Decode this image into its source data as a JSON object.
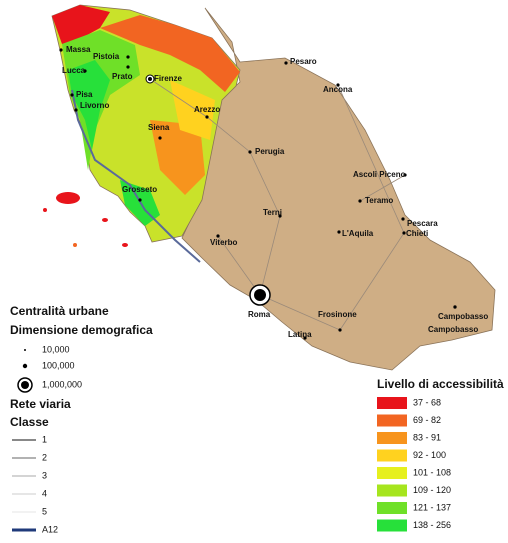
{
  "map": {
    "cities": [
      "Massa",
      "Pistoia",
      "Lucca",
      "Prato",
      "Firenze",
      "Pisa",
      "Livorno",
      "Arezzo",
      "Siena",
      "Perugia",
      "Grosseto",
      "Pesaro",
      "Ancona",
      "Ascoli Piceno",
      "Teramo",
      "Pescara",
      "Chieti",
      "L'Aquila",
      "Terni",
      "Viterbo",
      "Roma",
      "Frosinone",
      "Latina",
      "Campobasso",
      "Campobasso"
    ],
    "legend_centrality": {
      "title": "Centralità urbane",
      "subtitle": "Dimensione demografica",
      "items": [
        "10,000",
        "100,000",
        "1,000,000"
      ]
    },
    "legend_roads": {
      "title": "Rete viaria",
      "subtitle": "Classe",
      "items": [
        "1",
        "2",
        "3",
        "4",
        "5",
        "A12"
      ]
    },
    "legend_access": {
      "title": "Livello di accessibilità",
      "classes": [
        {
          "label": "37 - 68",
          "color": "#e8141b"
        },
        {
          "label": "69 - 82",
          "color": "#f26522"
        },
        {
          "label": "83 - 91",
          "color": "#f7941d"
        },
        {
          "label": "92 - 100",
          "color": "#ffd21f"
        },
        {
          "label": "101 - 108",
          "color": "#e6f01e"
        },
        {
          "label": "109 - 120",
          "color": "#a6e51e"
        },
        {
          "label": "121 - 137",
          "color": "#6fe028"
        },
        {
          "label": "138 - 256",
          "color": "#27e03a"
        }
      ]
    }
  }
}
